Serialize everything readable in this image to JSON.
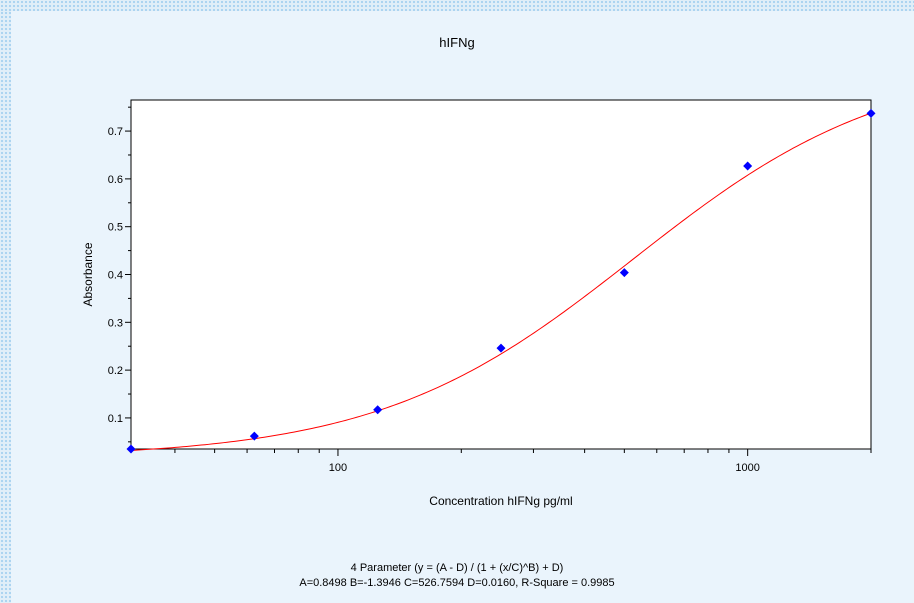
{
  "chart_data": {
    "type": "scatter",
    "title": "hIFNg",
    "xlabel": "Concentration hIFNg pg/ml",
    "ylabel": "Absorbance",
    "xscale": "log",
    "xlim": [
      31.25,
      2000
    ],
    "ylim": [
      0.035,
      0.765
    ],
    "x_ticks": [
      100,
      1000
    ],
    "x_tick_labels": [
      "100",
      "1000"
    ],
    "y_ticks": [
      0.1,
      0.2,
      0.3,
      0.4,
      0.5,
      0.6,
      0.7
    ],
    "y_tick_labels": [
      "0.1",
      "0.2",
      "0.3",
      "0.4",
      "0.5",
      "0.6",
      "0.7"
    ],
    "grid": false,
    "points": [
      {
        "x": 31.25,
        "y": 0.035
      },
      {
        "x": 62.5,
        "y": 0.062
      },
      {
        "x": 125,
        "y": 0.117
      },
      {
        "x": 250,
        "y": 0.246
      },
      {
        "x": 500,
        "y": 0.404
      },
      {
        "x": 1000,
        "y": 0.627
      },
      {
        "x": 2000,
        "y": 0.737
      }
    ],
    "fit": {
      "model": "4PL",
      "A": 0.8498,
      "B": -1.3946,
      "C": 526.7594,
      "D": 0.016
    },
    "marker_color": "#0000ff",
    "fit_color": "#ff0000"
  },
  "formula_line1": "4 Parameter (y = (A - D) / (1 + (x/C)^B) + D)",
  "formula_line2": "A=0.8498  B=-1.3946  C=526.7594  D=0.0160, R-Square = 0.9985"
}
